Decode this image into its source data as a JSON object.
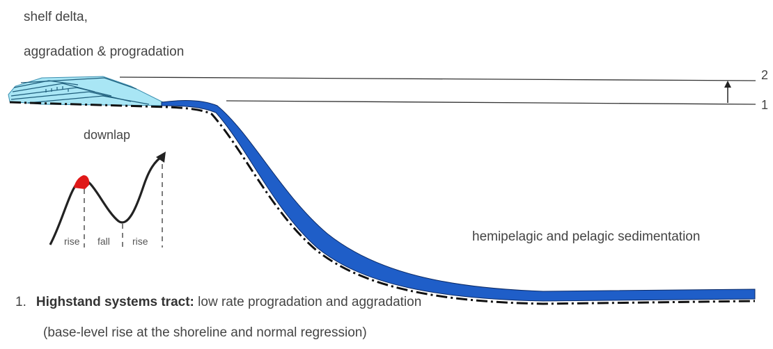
{
  "labels": {
    "title_line1": "shelf delta,",
    "title_line2": "aggradation & progradation",
    "downlap": "downlap",
    "hemipelagic": "hemipelagic and pelagic sedimentation",
    "level_2": "2",
    "level_1": "1"
  },
  "curve_labels": {
    "rise_1": "rise",
    "fall": "fall",
    "rise_2": "rise"
  },
  "caption": {
    "number": "1.",
    "bold": "Highstand systems tract:",
    "rest": " low rate progradation and aggradation",
    "line2": "(base-level rise at the shoreline and normal regression)"
  },
  "colors": {
    "slope_fill": "#1f5ec8",
    "shelf_wedge": "#a9e6f5",
    "marker": "#e01818",
    "lines": "#222222"
  }
}
